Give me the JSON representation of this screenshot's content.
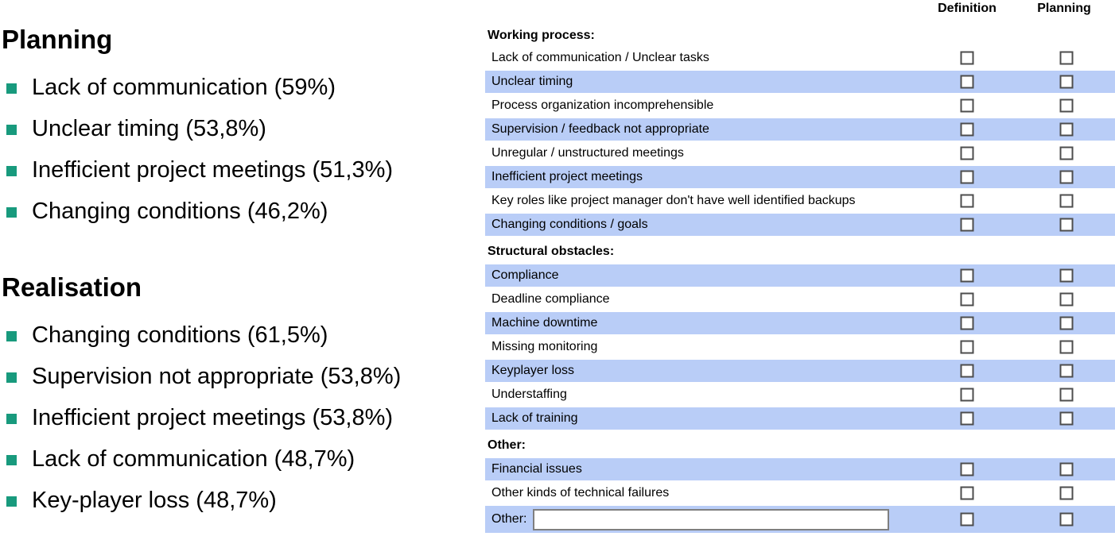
{
  "left_panel": {
    "sections": [
      {
        "heading": "Planning",
        "items": [
          "Lack of communication (59%)",
          "Unclear timing (53,8%)",
          "Inefficient project meetings (51,3%)",
          "Changing conditions (46,2%)"
        ]
      },
      {
        "heading": "Realisation",
        "items": [
          "Changing conditions (61,5%)",
          "Supervision not appropriate (53,8%)",
          "Inefficient project meetings (53,8%)",
          "Lack of communication (48,7%)",
          "Key-player loss (48,7%)"
        ]
      }
    ]
  },
  "form": {
    "columns": [
      "Definition",
      "Planning"
    ],
    "sections": [
      {
        "header": "Working process:",
        "rows": [
          {
            "label": "Lack of communication / Unclear tasks",
            "shaded": false,
            "definition_checked": false,
            "planning_checked": false
          },
          {
            "label": "Unclear timing",
            "shaded": true,
            "definition_checked": false,
            "planning_checked": false
          },
          {
            "label": "Process organization incomprehensible",
            "shaded": false,
            "definition_checked": false,
            "planning_checked": false
          },
          {
            "label": "Supervision / feedback not appropriate",
            "shaded": true,
            "definition_checked": false,
            "planning_checked": false
          },
          {
            "label": "Unregular / unstructured meetings",
            "shaded": false,
            "definition_checked": false,
            "planning_checked": false
          },
          {
            "label": "Inefficient project meetings",
            "shaded": true,
            "definition_checked": false,
            "planning_checked": false
          },
          {
            "label": "Key roles like project manager don't have well identified backups",
            "shaded": false,
            "definition_checked": false,
            "planning_checked": false
          },
          {
            "label": "Changing conditions / goals",
            "shaded": true,
            "definition_checked": false,
            "planning_checked": false
          }
        ]
      },
      {
        "header": "Structural obstacles:",
        "rows": [
          {
            "label": "Compliance",
            "shaded": true,
            "definition_checked": false,
            "planning_checked": false
          },
          {
            "label": "Deadline compliance",
            "shaded": false,
            "definition_checked": false,
            "planning_checked": false
          },
          {
            "label": "Machine downtime",
            "shaded": true,
            "definition_checked": false,
            "planning_checked": false
          },
          {
            "label": "Missing monitoring",
            "shaded": false,
            "definition_checked": false,
            "planning_checked": false
          },
          {
            "label": "Keyplayer loss",
            "shaded": true,
            "definition_checked": false,
            "planning_checked": false
          },
          {
            "label": "Understaffing",
            "shaded": false,
            "definition_checked": false,
            "planning_checked": false
          },
          {
            "label": "Lack of training",
            "shaded": true,
            "definition_checked": false,
            "planning_checked": false
          }
        ]
      },
      {
        "header": "Other:",
        "rows": [
          {
            "label": "Financial issues",
            "shaded": true,
            "definition_checked": false,
            "planning_checked": false
          },
          {
            "label": "Other kinds of technical failures",
            "shaded": false,
            "definition_checked": false,
            "planning_checked": false
          },
          {
            "label": "Other:",
            "shaded": true,
            "has_input": true,
            "input_value": "",
            "definition_checked": false,
            "planning_checked": false
          }
        ]
      }
    ]
  },
  "colors": {
    "row_shaded": "#b9cdf7",
    "bullet": "#189a7d",
    "checkbox_border": "#4d4d4d",
    "input_border": "#7f7f7f",
    "text": "#000000"
  }
}
